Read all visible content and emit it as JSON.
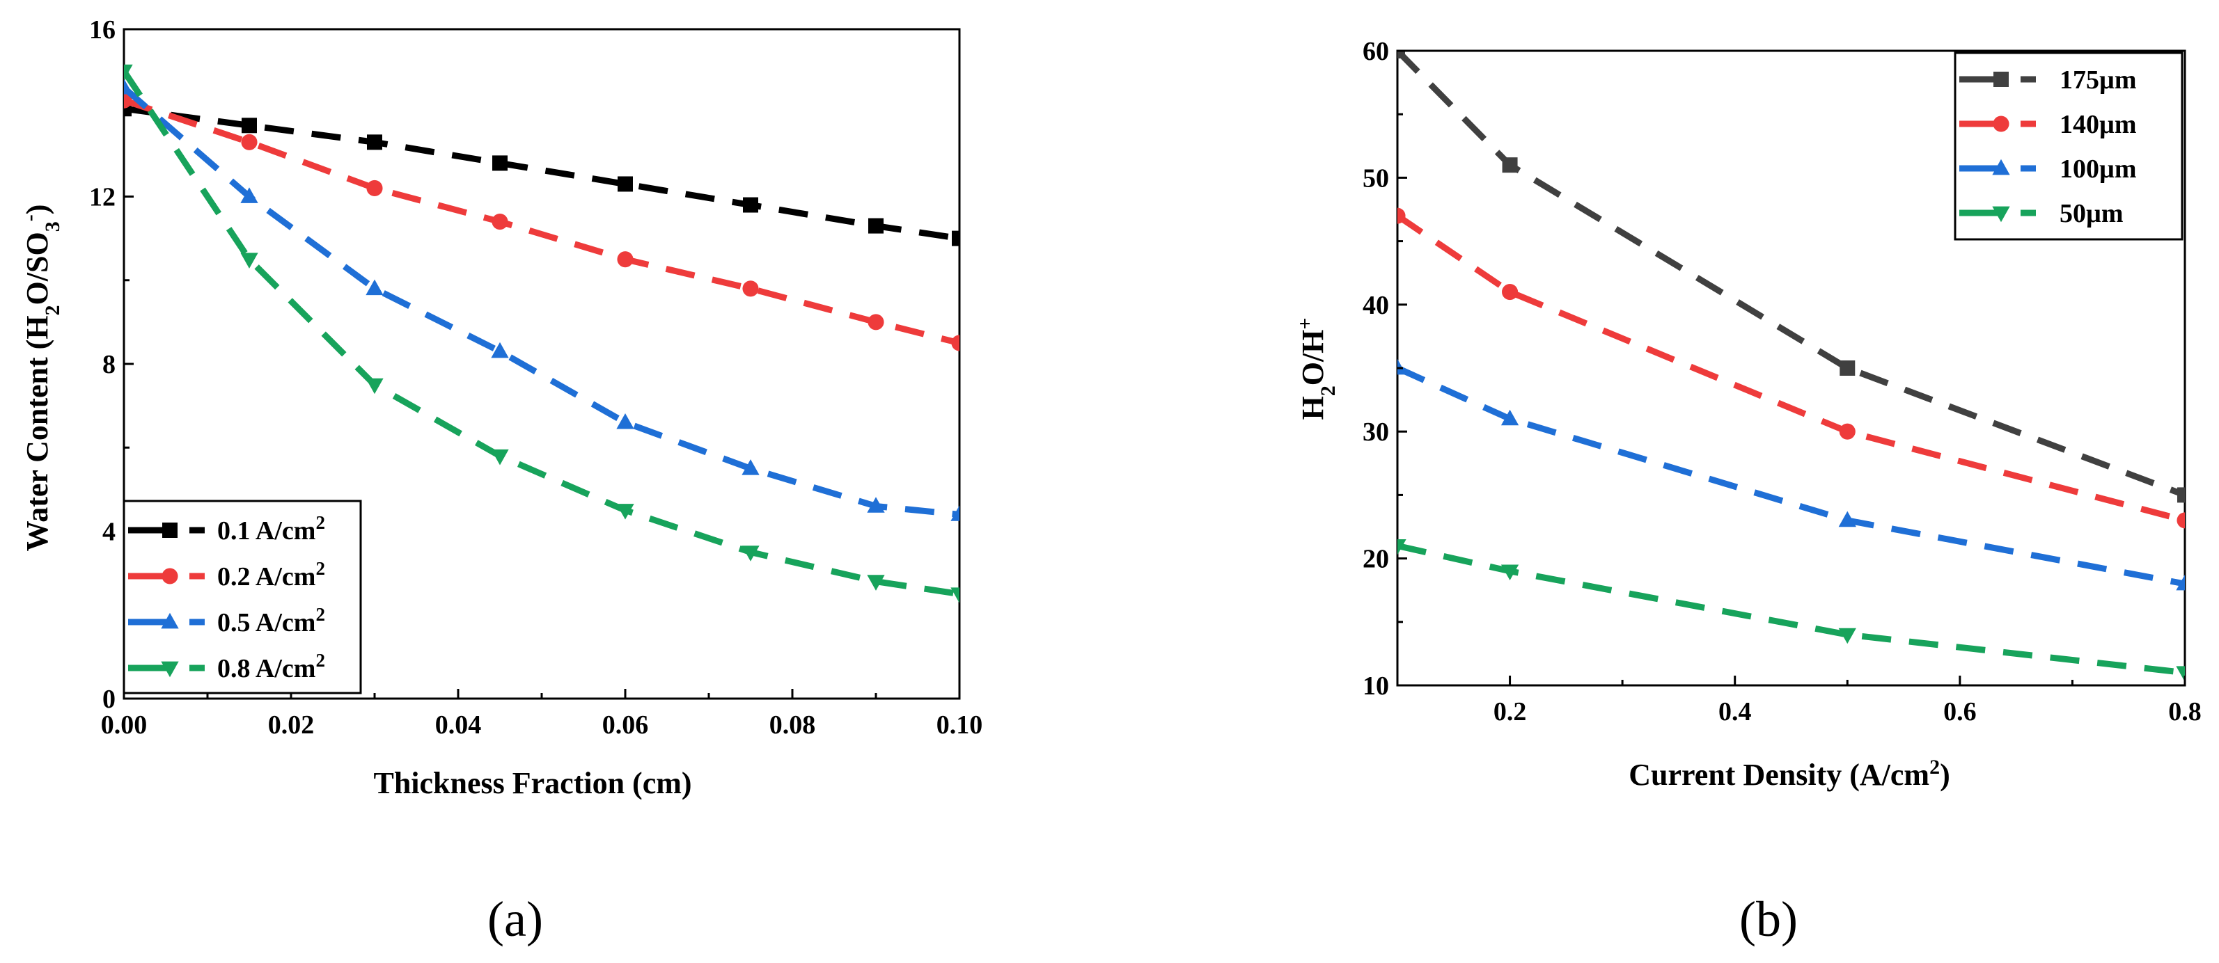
{
  "figure": {
    "panels": [
      {
        "id": "a",
        "panel_label": "(a)",
        "legend_placement": "bottom-left",
        "legend_frame": true,
        "grid": false
      },
      {
        "id": "b",
        "panel_label": "(b)",
        "legend_placement": "top-right",
        "legend_frame": true,
        "grid": false
      }
    ]
  },
  "chart_data": [
    {
      "type": "line",
      "panel": "(a)",
      "title": "",
      "xlabel": "Thickness Fraction (cm)",
      "ylabel": "Water Content (H2O/SO3-)",
      "xlim": [
        0,
        0.1
      ],
      "ylim": [
        0,
        16
      ],
      "xticks": [
        0.0,
        0.02,
        0.04,
        0.06,
        0.08,
        0.1
      ],
      "xtick_labels": [
        "0.00",
        "0.02",
        "0.04",
        "0.06",
        "0.08",
        "0.10"
      ],
      "yticks": [
        0,
        4,
        8,
        12,
        16
      ],
      "ytick_labels": [
        "0",
        "4",
        "8",
        "12",
        "16"
      ],
      "series": [
        {
          "name": "0.1 A/cm2",
          "legend_label": "0.1 A/cm",
          "legend_sup": "2",
          "marker": "square",
          "color": "#000000",
          "x": [
            0,
            0.015,
            0.03,
            0.045,
            0.06,
            0.075,
            0.09,
            0.1
          ],
          "y": [
            14.1,
            13.7,
            13.3,
            12.8,
            12.3,
            11.8,
            11.3,
            11.0
          ]
        },
        {
          "name": "0.2 A/cm2",
          "legend_label": "0.2 A/cm",
          "legend_sup": "2",
          "marker": "circle",
          "color": "#ee3b3b",
          "x": [
            0,
            0.015,
            0.03,
            0.045,
            0.06,
            0.075,
            0.09,
            0.1
          ],
          "y": [
            14.3,
            13.3,
            12.2,
            11.4,
            10.5,
            9.8,
            9.0,
            8.5
          ]
        },
        {
          "name": "0.5 A/cm2",
          "legend_label": "0.5 A/cm",
          "legend_sup": "2",
          "marker": "triangle-up",
          "color": "#1f6fd6",
          "x": [
            0,
            0.015,
            0.03,
            0.045,
            0.06,
            0.075,
            0.09,
            0.1
          ],
          "y": [
            14.6,
            12.0,
            9.8,
            8.3,
            6.6,
            5.5,
            4.6,
            4.4
          ]
        },
        {
          "name": "0.8 A/cm2",
          "legend_label": "0.8 A/cm",
          "legend_sup": "2",
          "marker": "triangle-down",
          "color": "#17a35b",
          "x": [
            0,
            0.015,
            0.03,
            0.045,
            0.06,
            0.075,
            0.09,
            0.1
          ],
          "y": [
            15.0,
            10.5,
            7.5,
            5.8,
            4.5,
            3.5,
            2.8,
            2.5
          ]
        }
      ]
    },
    {
      "type": "line",
      "panel": "(b)",
      "title": "",
      "xlabel": "Current Density (A/cm2)",
      "ylabel": "H2O/H+",
      "xlim": [
        0.1,
        0.8
      ],
      "ylim": [
        10,
        60
      ],
      "xticks": [
        0.2,
        0.4,
        0.6,
        0.8
      ],
      "xtick_labels": [
        "0.2",
        "0.4",
        "0.6",
        "0.8"
      ],
      "yticks": [
        10,
        20,
        30,
        40,
        50,
        60
      ],
      "ytick_labels": [
        "10",
        "20",
        "30",
        "40",
        "50",
        "60"
      ],
      "series": [
        {
          "name": "175µm",
          "legend_label": "175µm",
          "marker": "square",
          "color": "#404040",
          "x": [
            0.1,
            0.2,
            0.5,
            0.8
          ],
          "y": [
            60,
            51,
            35,
            25
          ]
        },
        {
          "name": "140µm",
          "legend_label": "140µm",
          "marker": "circle",
          "color": "#ee3b3b",
          "x": [
            0.1,
            0.2,
            0.5,
            0.8
          ],
          "y": [
            47,
            41,
            30,
            23
          ]
        },
        {
          "name": "100µm",
          "legend_label": "100µm",
          "marker": "triangle-up",
          "color": "#1f6fd6",
          "x": [
            0.1,
            0.2,
            0.5,
            0.8
          ],
          "y": [
            35,
            31,
            23,
            18
          ]
        },
        {
          "name": "50µm",
          "legend_label": "50µm",
          "marker": "triangle-down",
          "color": "#17a35b",
          "x": [
            0.1,
            0.2,
            0.5,
            0.8
          ],
          "y": [
            21,
            19,
            14,
            11
          ]
        }
      ]
    }
  ]
}
